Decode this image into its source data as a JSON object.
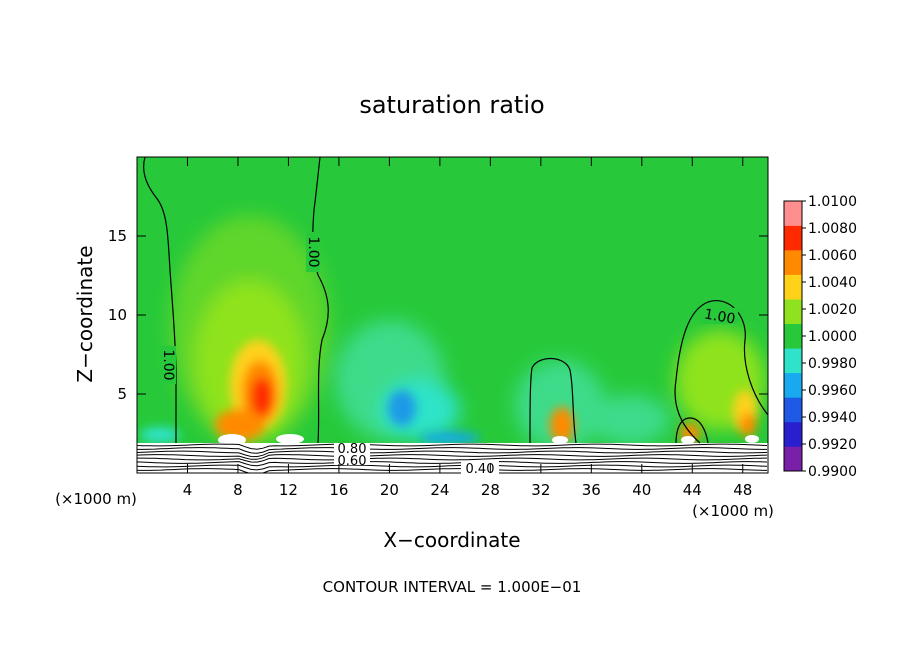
{
  "chart_data": {
    "type": "heatmap",
    "title": "saturation ratio",
    "xlabel": "X−coordinate",
    "ylabel": "Z−coordinate",
    "x_unit_left": "(×1000 m)",
    "x_unit_right": "(×1000 m)",
    "xlim": [
      0,
      50
    ],
    "ylim": [
      0,
      20
    ],
    "x_ticks": [
      4,
      8,
      12,
      16,
      20,
      24,
      28,
      32,
      36,
      40,
      44,
      48
    ],
    "y_ticks": [
      5,
      10,
      15
    ],
    "colorbar": {
      "min": 0.99,
      "max": 1.01,
      "labels": [
        "1.0100",
        "1.0080",
        "1.0060",
        "1.0040",
        "1.0020",
        "1.0000",
        "0.9980",
        "0.9960",
        "0.9940",
        "0.9920",
        "0.9900"
      ],
      "colors": [
        "#7a1fa8",
        "#2a1fcf",
        "#1e5ae6",
        "#18a9ef",
        "#2fe3c8",
        "#27c93a",
        "#8fe31e",
        "#ffd21a",
        "#ff8a00",
        "#ff2a00",
        "#ff8f8f"
      ]
    },
    "contour_labels": [
      "1.00",
      "1.00",
      "1.00",
      "0.80",
      "0.60",
      "0.40"
    ],
    "contour_interval_label": "CONTOUR INTERVAL = 1.000E−01",
    "grid": false
  }
}
